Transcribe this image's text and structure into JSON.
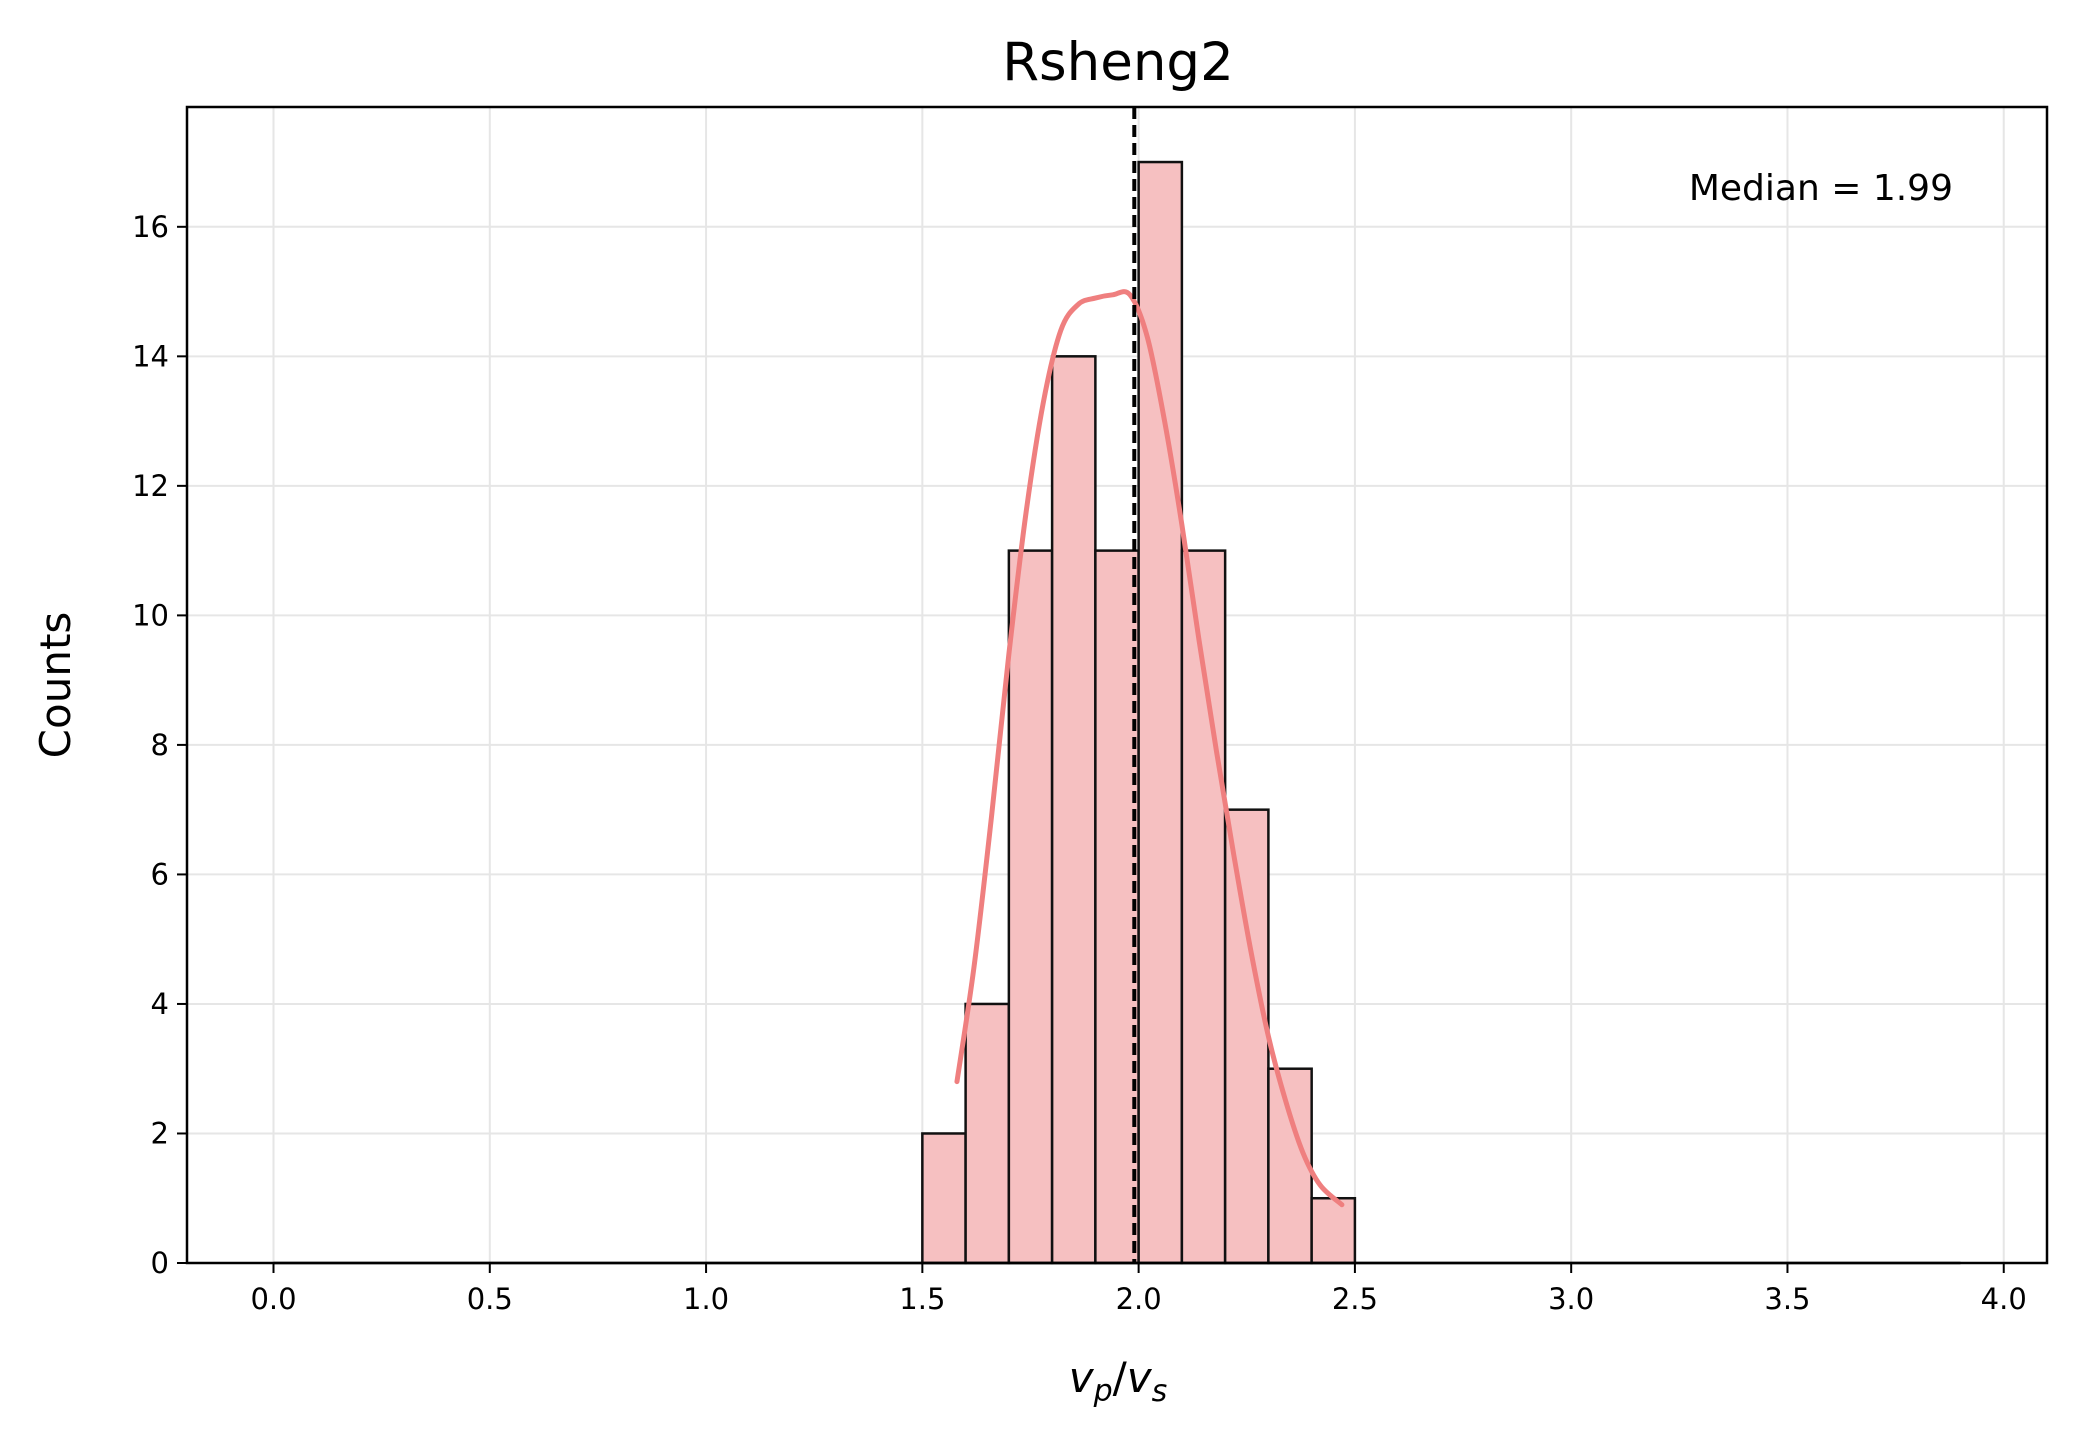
{
  "chart_data": {
    "type": "bar",
    "title": "Rsheng2",
    "xlabel": "v_p/v_s",
    "xlabel_parts": {
      "v1": "v",
      "sub1": "p",
      "slash": "/",
      "v2": "v",
      "sub2": "s"
    },
    "ylabel": "Counts",
    "xlim": [
      -0.2,
      4.1
    ],
    "ylim": [
      0,
      17.85
    ],
    "xticks": [
      "0.0",
      "0.5",
      "1.0",
      "1.5",
      "2.0",
      "2.5",
      "3.0",
      "3.5",
      "4.0"
    ],
    "xtick_values": [
      0.0,
      0.5,
      1.0,
      1.5,
      2.0,
      2.5,
      3.0,
      3.5,
      4.0
    ],
    "yticks": [
      "0",
      "2",
      "4",
      "6",
      "8",
      "10",
      "12",
      "14",
      "16"
    ],
    "ytick_values": [
      0,
      2,
      4,
      6,
      8,
      10,
      12,
      14,
      16
    ],
    "grid": true,
    "bin_width": 0.1,
    "bins": [
      {
        "start": 1.5,
        "count": 2
      },
      {
        "start": 1.6,
        "count": 4
      },
      {
        "start": 1.7,
        "count": 11
      },
      {
        "start": 1.8,
        "count": 14
      },
      {
        "start": 1.9,
        "count": 11
      },
      {
        "start": 2.0,
        "count": 17
      },
      {
        "start": 2.1,
        "count": 11
      },
      {
        "start": 2.2,
        "count": 7
      },
      {
        "start": 2.3,
        "count": 3
      },
      {
        "start": 2.4,
        "count": 1
      }
    ],
    "zero_baseline": {
      "x_start": 0.0,
      "x_end": 3.9
    },
    "kde_curve": {
      "x": [
        1.58,
        1.62,
        1.66,
        1.7,
        1.74,
        1.78,
        1.82,
        1.86,
        1.9,
        1.94,
        1.98,
        2.02,
        2.06,
        2.1,
        2.14,
        2.18,
        2.22,
        2.26,
        2.3,
        2.34,
        2.38,
        2.42,
        2.47
      ],
      "y": [
        2.8,
        4.6,
        6.9,
        9.4,
        11.6,
        13.3,
        14.4,
        14.8,
        14.9,
        14.95,
        14.95,
        14.3,
        13.0,
        11.4,
        9.6,
        7.9,
        6.3,
        4.8,
        3.5,
        2.5,
        1.7,
        1.2,
        0.9
      ]
    },
    "median": 1.99,
    "median_label": "Median = 1.99",
    "colors": {
      "bar_fill": "#f6c0c1",
      "bar_edge": "#111111",
      "kde_line": "#ef7f7f",
      "median_line": "#000000",
      "grid": "#e6e6e6"
    }
  }
}
